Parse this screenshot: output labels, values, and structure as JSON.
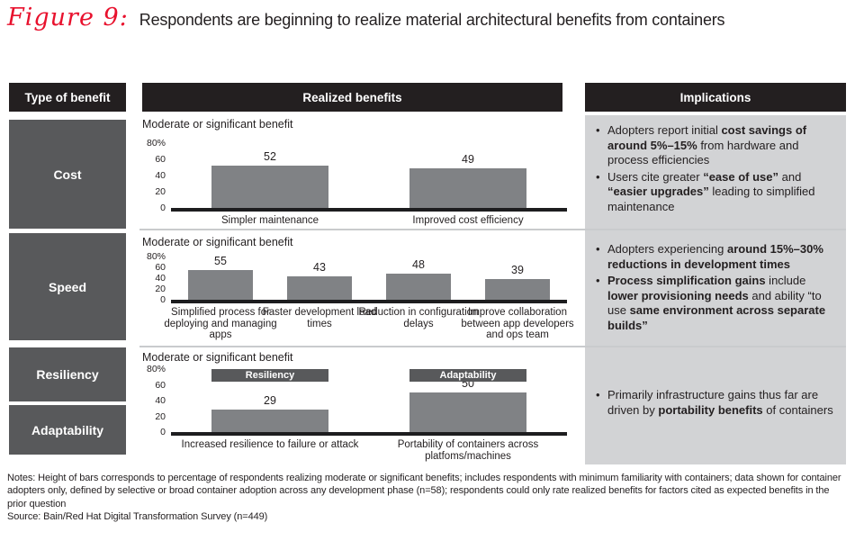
{
  "title": {
    "figure_label": "Figure 9:",
    "text": "Respondents are beginning to realize material architectural benefits from containers"
  },
  "columns": {
    "type_of_benefit": "Type of benefit",
    "realized_benefits": "Realized benefits",
    "implications": "Implications"
  },
  "row_labels": [
    "Cost",
    "Speed",
    "Resiliency",
    "Adaptability"
  ],
  "chart_data": [
    {
      "type": "bar",
      "row": "Cost",
      "subtitle": "Moderate or significant benefit",
      "ymax": 80,
      "ylim": [
        0,
        80
      ],
      "y_ticks": [
        "80%",
        "60",
        "40",
        "20",
        "0"
      ],
      "grid": false,
      "categories": [
        "Simpler maintenance",
        "Improved cost efficiency"
      ],
      "values": [
        52,
        49
      ]
    },
    {
      "type": "bar",
      "row": "Speed",
      "subtitle": "Moderate or significant benefit",
      "ymax": 80,
      "ylim": [
        0,
        80
      ],
      "y_ticks": [
        "80%",
        "60",
        "40",
        "20",
        "0"
      ],
      "grid": false,
      "categories": [
        "Simplified process for deploying and managing apps",
        "Faster development lead times",
        "Reduction in configuration delays",
        "Improve collaboration between app developers and ops team"
      ],
      "values": [
        55,
        43,
        48,
        39
      ]
    },
    {
      "type": "bar",
      "row": "Resiliency / Adaptability",
      "subtitle": "Moderate or significant benefit",
      "ymax": 80,
      "ylim": [
        0,
        80
      ],
      "y_ticks": [
        "80%",
        "60",
        "40",
        "20",
        "0"
      ],
      "grid": false,
      "categories": [
        "Increased resilience to failure or attack",
        "Portability of containers across platfoms/machines"
      ],
      "values": [
        29,
        50
      ],
      "group_labels": [
        "Resiliency",
        "Adaptability"
      ]
    }
  ],
  "implications": [
    {
      "bullets": [
        [
          {
            "t": "Adopters report initial "
          },
          {
            "t": "cost savings of around 5%–15%",
            "b": true
          },
          {
            "t": " from hardware and process efficiencies"
          }
        ],
        [
          {
            "t": "Users cite greater "
          },
          {
            "t": "“ease of use”",
            "b": true
          },
          {
            "t": " and "
          },
          {
            "t": "“easier upgrades”",
            "b": true
          },
          {
            "t": " leading to simplified maintenance"
          }
        ]
      ]
    },
    {
      "bullets": [
        [
          {
            "t": "Adopters experiencing "
          },
          {
            "t": "around 15%–30% reductions in development times",
            "b": true
          }
        ],
        [
          {
            "t": "Process simplification gains",
            "b": true
          },
          {
            "t": " include "
          },
          {
            "t": "lower provisioning needs",
            "b": true
          },
          {
            "t": " and ability “to use "
          },
          {
            "t": "same environment across separate builds”",
            "b": true
          }
        ]
      ]
    },
    {
      "bullets": [
        [
          {
            "t": "Primarily infrastructure gains thus far are driven by "
          },
          {
            "t": "portability benefits",
            "b": true
          },
          {
            "t": " of containers"
          }
        ]
      ]
    }
  ],
  "footer": {
    "notes": "Notes: Height of bars corresponds to percentage of respondents realizing moderate or significant benefits; includes respondents with minimum familiarity with containers; data shown for container adopters only, defined by selective or broad container adoption across any development phase (n=58); respondents could only rate realized benefits for factors cited as expected benefits in the prior question",
    "source": "Source: Bain/Red Hat Digital Transformation Survey (n=449)"
  },
  "colors": {
    "header_bg": "#231f20",
    "row_label_bg": "#58595b",
    "bar": "#808285",
    "group_label_bg": "#58595b",
    "implications_bg": "#d2d3d5",
    "divider": "#c9cbcd",
    "accent_red": "#e8112d",
    "text": "#231f20"
  }
}
